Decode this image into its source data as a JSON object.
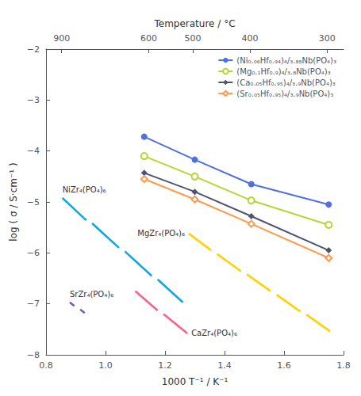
{
  "chart_data": {
    "type": "line",
    "x2label": "Temperature / °C",
    "xlabel": "1000 T⁻¹ / K⁻¹",
    "ylabel": "log ( σ / S·cm⁻¹ )",
    "xlim": [
      0.8,
      1.8
    ],
    "xticks": [
      0.8,
      {
        "value": 1.0,
        "label": "1.0"
      },
      1.2,
      1.4,
      1.6,
      1.8
    ],
    "ylim": [
      -8.0,
      -2.0
    ],
    "yticks": [
      {
        "value": -8,
        "label": "−8"
      },
      {
        "value": -7,
        "label": "−7"
      },
      {
        "value": -6,
        "label": "−6"
      },
      {
        "value": -5,
        "label": "−5"
      },
      {
        "value": -4,
        "label": "−4"
      },
      {
        "value": -3,
        "label": "−3"
      },
      {
        "value": -2,
        "label": "−2"
      }
    ],
    "x2lim": [
      0.8,
      1.8
    ],
    "x2ticks": [
      {
        "value": 0.852406,
        "label": "900"
      },
      {
        "value": 1.145278,
        "label": "600"
      },
      {
        "value": 1.29341,
        "label": "500"
      },
      {
        "value": 1.485553,
        "label": "400"
      },
      {
        "value": 1.744744,
        "label": "300"
      }
    ],
    "grid": false,
    "legend": "upper right",
    "series": [
      {
        "name": "(Ni₀.₀₆Hf₀.₉₄)₄/₃.₈₈Nb(PO₄)₃",
        "marker": "circle",
        "x": [
          1.13,
          1.3,
          1.49,
          1.75
        ],
        "values": [
          -3.72,
          -4.17,
          -4.65,
          -5.05
        ]
      },
      {
        "name": "(Mg₀.₁Hf₀.₉)₄/₃.₈Nb(PO₄)₃",
        "marker": "emptyCircle",
        "x": [
          1.13,
          1.3,
          1.49,
          1.75
        ],
        "values": [
          -4.1,
          -4.5,
          -4.97,
          -5.45
        ]
      },
      {
        "name": "(Ca₀.₀₅Hf₀.₉₅)₄/₃.₉Nb(PO₄)₃",
        "marker": "diamond",
        "x": [
          1.13,
          1.3,
          1.49,
          1.75
        ],
        "values": [
          -4.43,
          -4.8,
          -5.28,
          -5.95
        ]
      },
      {
        "name": "(Sr₀.₀₅Hf₀.₉₅)₄/₃.₉Nb(PO₄)₃",
        "marker": "emptyDiamond",
        "x": [
          1.13,
          1.3,
          1.49,
          1.75
        ],
        "values": [
          -4.55,
          -4.95,
          -5.43,
          -6.1
        ]
      },
      {
        "name": "NiZr₄(PO₄)₆",
        "x": [
          0.855,
          0.935,
          null,
          0.955,
          1.045,
          null,
          1.065,
          1.155,
          null,
          1.175,
          1.26
        ],
        "values": [
          -4.92,
          -5.36,
          null,
          -5.42,
          -5.9,
          null,
          -5.97,
          -6.45,
          null,
          -6.52,
          -6.97
        ]
      },
      {
        "name": "MgZr₄(PO₄)₆",
        "x": [
          1.28,
          1.355,
          null,
          1.375,
          1.455,
          null,
          1.475,
          1.555,
          null,
          1.575,
          1.655,
          null,
          1.675,
          1.755
        ],
        "values": [
          -5.62,
          -5.95,
          null,
          -6.02,
          -6.36,
          null,
          -6.42,
          -6.75,
          null,
          -6.82,
          -7.15,
          null,
          -7.21,
          -7.54
        ]
      },
      {
        "name": "CaZr₄(PO₄)₆",
        "x": [
          1.1,
          1.175,
          null,
          1.195,
          1.275
        ],
        "values": [
          -6.75,
          -7.13,
          null,
          -7.2,
          -7.58
        ]
      },
      {
        "name": "SrZr₄(PO₄)₆",
        "x": [
          0.88,
          0.895,
          null,
          0.915,
          0.93
        ],
        "values": [
          -6.97,
          -7.04,
          null,
          -7.11,
          -7.18
        ]
      }
    ]
  }
}
